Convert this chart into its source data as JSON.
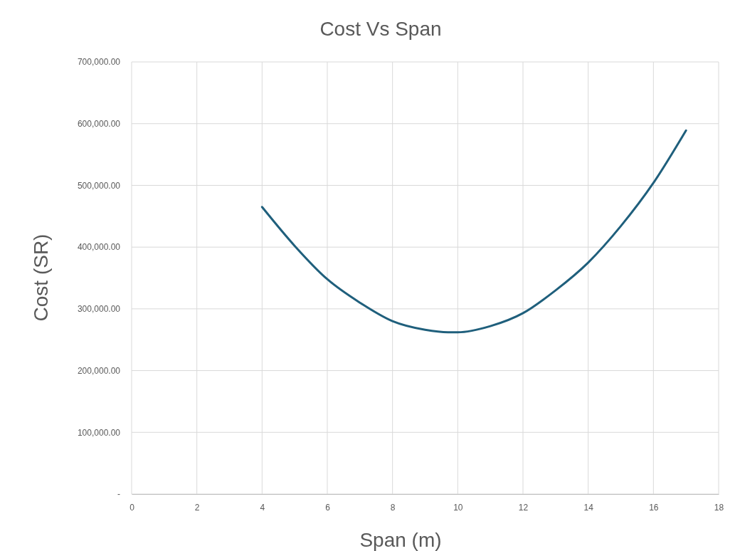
{
  "chart_data": {
    "type": "line",
    "title": "Cost  Vs Span",
    "xlabel": "Span (m)",
    "ylabel": "Cost (SR)",
    "x": [
      4,
      5,
      6,
      7,
      8,
      9,
      9.7,
      10,
      11,
      12,
      13,
      14,
      15,
      16,
      17
    ],
    "series": [
      {
        "color": "#1f5f7c",
        "values": [
          465000,
          402000,
          348000,
          310000,
          280000,
          266000,
          262000,
          262000,
          272000,
          293000,
          330000,
          375000,
          434000,
          504000,
          589000
        ]
      }
    ],
    "xlim": [
      0,
      18
    ],
    "xticks": [
      0,
      2,
      4,
      6,
      8,
      10,
      12,
      14,
      16,
      18
    ],
    "ylim": [
      0,
      700000
    ],
    "yticks": [
      {
        "value": 0,
        "label": "-"
      },
      {
        "value": 100000,
        "label": "100,000.00"
      },
      {
        "value": 200000,
        "label": "200,000.00"
      },
      {
        "value": 300000,
        "label": "300,000.00"
      },
      {
        "value": 400000,
        "label": "400,000.00"
      },
      {
        "value": 500000,
        "label": "500,000.00"
      },
      {
        "value": 600000,
        "label": "600,000.00"
      },
      {
        "value": 700000,
        "label": "700,000.00"
      }
    ],
    "grid": true,
    "marker": "none",
    "line_style": "solid"
  }
}
